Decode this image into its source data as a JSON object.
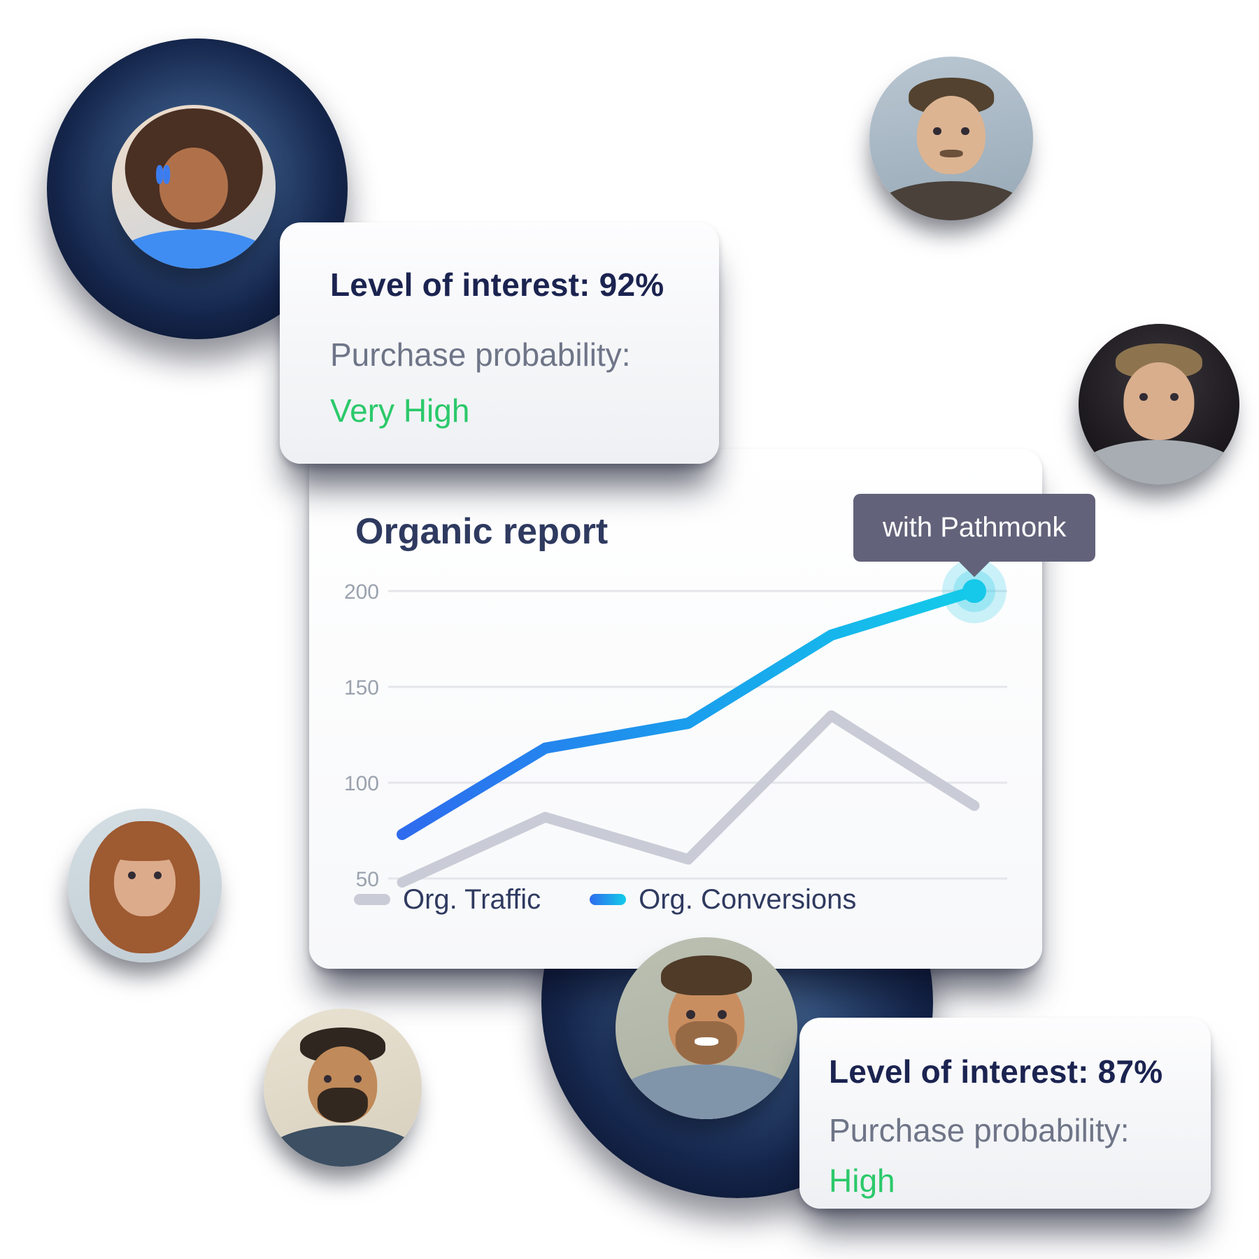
{
  "page_title": "Organic report illustration",
  "cards": {
    "top": {
      "interest": "Level of interest: 92%",
      "probability_label": "Purchase probability:",
      "probability_value": "Very High"
    },
    "bottom": {
      "interest": "Level of interest: 87%",
      "probability_label": "Purchase probability:",
      "probability_value": "High"
    }
  },
  "tooltip": {
    "label": "with Pathmonk",
    "bg": "#62637a",
    "text_color": "#ffffff"
  },
  "chart_data": {
    "type": "line",
    "title": "Organic report",
    "series": [
      {
        "name": "Org. Traffic",
        "color": "#c9ccd6",
        "values": [
          48,
          82,
          60,
          135,
          88
        ]
      },
      {
        "name": "Org. Conversions",
        "color_start": "#2e6bee",
        "color_mid": "#1a9ded",
        "color_end": "#13cdea",
        "values": [
          73,
          118,
          131,
          177,
          200
        ]
      }
    ],
    "yticks": [
      50,
      100,
      150,
      200
    ],
    "ylim": [
      30,
      215
    ],
    "grid": true,
    "legend_position": "bottom",
    "annotation": {
      "label": "with Pathmonk",
      "series": "Org. Conversions",
      "point_index": 4,
      "value": 200
    }
  },
  "colors": {
    "navy_text": "#1b2350",
    "gray_text": "#6f7588",
    "green_text": "#2bc96a",
    "chart_title": "#2f3a60",
    "grid": "#e4e6ea",
    "tick": "#9aa2ae",
    "dot": "#16c8e9"
  },
  "avatars": [
    {
      "label": "woman with curly hair and blue glasses"
    },
    {
      "label": "man with mustache"
    },
    {
      "label": "man in gray hoodie"
    },
    {
      "label": "woman with long red hair"
    },
    {
      "label": "bearded man in navy shirt"
    },
    {
      "label": "smiling man in blazer"
    }
  ]
}
